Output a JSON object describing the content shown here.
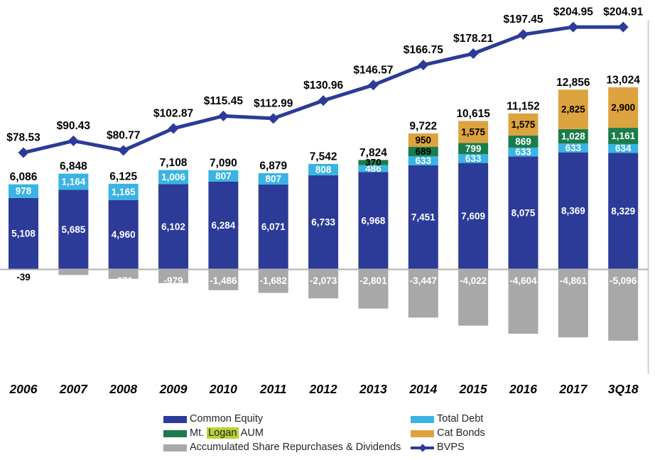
{
  "chart_data": {
    "type": "bar",
    "subtype": "stacked-bar-with-line",
    "categories": [
      "2006",
      "2007",
      "2008",
      "2009",
      "2010",
      "2011",
      "2012",
      "2013",
      "2014",
      "2015",
      "2016",
      "2017",
      "3Q18"
    ],
    "bar_series": [
      {
        "key": "common_equity",
        "name": "Common Equity",
        "color": "#2c3b97",
        "values": [
          5108,
          5685,
          4960,
          6102,
          6284,
          6071,
          6733,
          6968,
          7451,
          7609,
          8075,
          8369,
          8329
        ]
      },
      {
        "key": "total_debt",
        "name": "Total Debt",
        "color": "#39b4e3",
        "values": [
          978,
          1164,
          1165,
          1006,
          807,
          807,
          808,
          486,
          633,
          633,
          633,
          633,
          634
        ]
      },
      {
        "key": "mt_logan_aum",
        "name": "Mt. Logan AUM",
        "color": "#1a7c4b",
        "values": [
          0,
          0,
          0,
          0,
          0,
          0,
          0,
          370,
          689,
          799,
          869,
          1028,
          1161
        ]
      },
      {
        "key": "cat_bonds",
        "name": "Cat Bonds",
        "color": "#dda33f",
        "values": [
          0,
          0,
          0,
          0,
          0,
          0,
          0,
          0,
          950,
          1575,
          1575,
          2825,
          2900
        ]
      }
    ],
    "negative_series": {
      "key": "accumulated_share_repurchases_dividends",
      "name": "Accumulated Share Repurchases & Dividends",
      "color": "#a8a8a8",
      "values": [
        -39,
        -402,
        -671,
        -979,
        -1486,
        -1682,
        -2073,
        -2801,
        -3447,
        -4022,
        -4604,
        -4861,
        -5096
      ]
    },
    "totals": [
      6086,
      6848,
      6125,
      7108,
      7090,
      6879,
      7542,
      7824,
      9722,
      10615,
      11152,
      12856,
      13024
    ],
    "line_series": {
      "key": "bvps",
      "name": "BVPS",
      "color": "#2c3b97",
      "values": [
        78.53,
        90.43,
        80.77,
        102.87,
        115.45,
        112.99,
        130.96,
        146.57,
        166.75,
        178.21,
        197.45,
        204.95,
        204.91
      ],
      "label_prefix": "$"
    },
    "title": "",
    "xlabel": "",
    "ylabel": "",
    "grid": false,
    "legend_position": "bottom",
    "axis_colors": {
      "zero_line": "#b0b0b0",
      "right_border": "#c6c6c6"
    }
  },
  "legend": {
    "highlight_color": "#b7d438",
    "col1": [
      {
        "key": "common_equity",
        "label": "Common Equity"
      },
      {
        "key": "mt_logan_aum",
        "pre": "Mt. ",
        "highlight": "Logan",
        "post": " AUM"
      },
      {
        "key": "accumulated_share_repurchases_dividends",
        "label": "Accumulated Share Repurchases & Dividends"
      }
    ],
    "col2": [
      {
        "key": "total_debt",
        "label": "Total Debt"
      },
      {
        "key": "cat_bonds",
        "label": "Cat Bonds"
      },
      {
        "key": "bvps",
        "label": "BVPS"
      }
    ]
  }
}
